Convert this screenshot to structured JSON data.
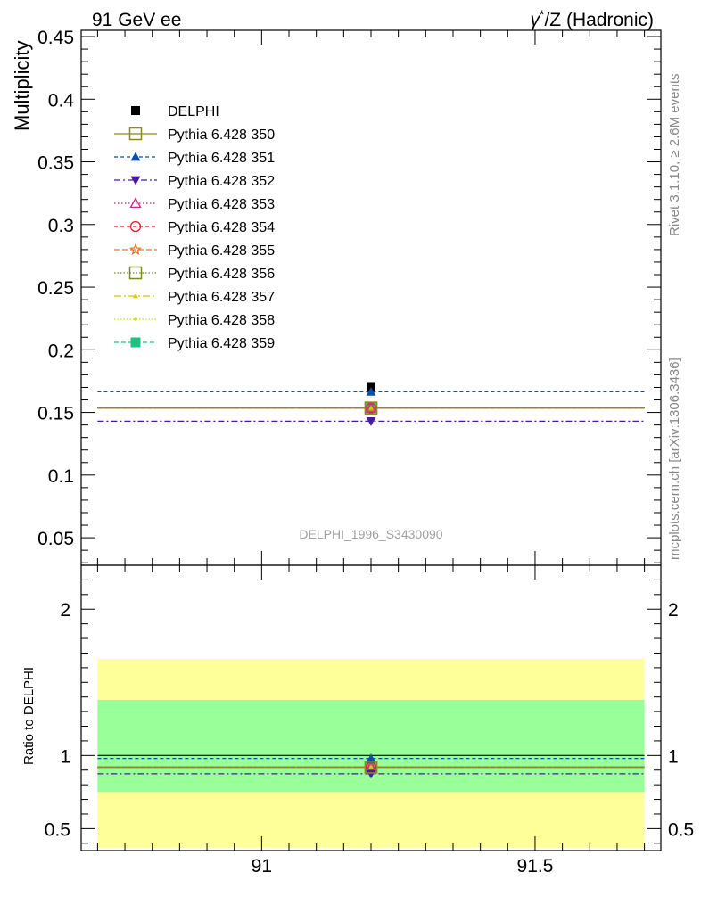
{
  "header": {
    "left": "91 GeV ee",
    "right_symbol": "γ",
    "right_sup": "*",
    "right_rest": "/Z (Hadronic)"
  },
  "side_labels": {
    "rivet": "Rivet 3.1.10, ≥ 2.6M events",
    "mcplots": "mcplots.cern.ch [arXiv:1306.3436]"
  },
  "watermark": "DELPHI_1996_S3430090",
  "chart_data": [
    {
      "type": "scatter",
      "panel": "main",
      "ylabel": "Multiplicity",
      "xlim": [
        90.67,
        91.73
      ],
      "ylim": [
        0.028,
        0.455
      ],
      "y_ticks": [
        0.05,
        0.1,
        0.15,
        0.2,
        0.25,
        0.3,
        0.35,
        0.4,
        0.45
      ],
      "y_tick_labels": [
        "0.05",
        "0.1",
        "0.15",
        "0.2",
        "0.25",
        "0.3",
        "0.35",
        "0.4",
        "0.45"
      ],
      "data": {
        "name": "DELPHI",
        "x": 91.2,
        "y": 0.17,
        "color": "#000000"
      },
      "series": [
        {
          "name": "Pythia 6.428 350",
          "y": 0.1535,
          "color": "#8a8a1e",
          "dash": "",
          "marker": "square-open"
        },
        {
          "name": "Pythia 6.428 351",
          "y": 0.1665,
          "color": "#0b4fa8",
          "dash": "4,3",
          "marker": "triangle-up"
        },
        {
          "name": "Pythia 6.428 352",
          "y": 0.143,
          "color": "#4a1aa5",
          "dash": "7,3,2,3",
          "marker": "triangle-down"
        },
        {
          "name": "Pythia 6.428 353",
          "y": 0.1535,
          "color": "#c0308a",
          "dash": "1.5,2.5",
          "marker": "triangle-open"
        },
        {
          "name": "Pythia 6.428 354",
          "y": 0.1535,
          "color": "#e0202a",
          "dash": "4,3",
          "marker": "circle-open"
        },
        {
          "name": "Pythia 6.428 355",
          "y": 0.1535,
          "color": "#f07020",
          "dash": "6,3",
          "marker": "star-open"
        },
        {
          "name": "Pythia 6.428 356",
          "y": 0.1535,
          "color": "#7a8a18",
          "dash": "1.5,2",
          "marker": "square-open"
        },
        {
          "name": "Pythia 6.428 357",
          "y": 0.1535,
          "color": "#d8c800",
          "dash": "8,3,2,3",
          "marker": "tri-small"
        },
        {
          "name": "Pythia 6.428 358",
          "y": 0.1535,
          "color": "#c8e020",
          "dash": "1.5,2",
          "marker": "dot"
        },
        {
          "name": "Pythia 6.428 359",
          "y": 0.1535,
          "color": "#20c080",
          "dash": "5,3",
          "marker": "square-filled"
        }
      ]
    },
    {
      "type": "scatter",
      "panel": "ratio",
      "ylabel": "Ratio to DELPHI",
      "xlim": [
        90.67,
        91.73
      ],
      "ylim": [
        0.35,
        2.3
      ],
      "y_ticks": [
        0.5,
        1,
        2
      ],
      "y_tick_labels": [
        "0.5",
        "1",
        "2"
      ],
      "x_ticks": [
        91,
        91.5
      ],
      "x_tick_labels": [
        "91",
        "91.5"
      ],
      "band_outer": [
        0.37,
        1.66
      ],
      "band_inner": [
        0.75,
        1.38
      ],
      "band_outer_color": "#ffff99",
      "band_inner_color": "#99ff99",
      "series": [
        {
          "name": "Pythia 6.428 350",
          "y": 0.92
        },
        {
          "name": "Pythia 6.428 351",
          "y": 0.98
        },
        {
          "name": "Pythia 6.428 352",
          "y": 0.875
        },
        {
          "name": "Pythia 6.428 353",
          "y": 0.92
        },
        {
          "name": "Pythia 6.428 354",
          "y": 0.92
        },
        {
          "name": "Pythia 6.428 355",
          "y": 0.92
        },
        {
          "name": "Pythia 6.428 356",
          "y": 0.92
        },
        {
          "name": "Pythia 6.428 357",
          "y": 0.92
        },
        {
          "name": "Pythia 6.428 358",
          "y": 0.92
        },
        {
          "name": "Pythia 6.428 359",
          "y": 0.92
        }
      ]
    }
  ]
}
